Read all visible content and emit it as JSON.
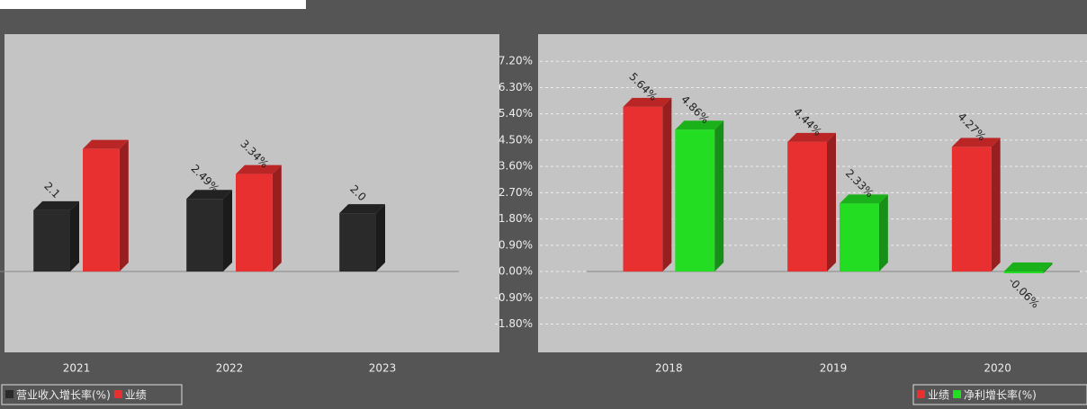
{
  "chart_data": [
    {
      "type": "bar",
      "categories": [
        "2021",
        "2022",
        "2023"
      ],
      "series": [
        {
          "name": "营业收入增长率(%)",
          "color": "#2a2a2a",
          "values": [
            2.1,
            2.49,
            2.0
          ],
          "value_labels": [
            "2.1",
            "2.49%",
            "2.0"
          ]
        },
        {
          "name": "业绩",
          "color": "#e83030",
          "values": [
            4.2,
            3.34,
            null
          ],
          "value_labels": [
            null,
            "3.34%",
            null
          ]
        }
      ],
      "ylim": [
        -2.4,
        8.1
      ],
      "grid": true
    },
    {
      "type": "bar",
      "categories": [
        "2018",
        "2019",
        "2020"
      ],
      "series": [
        {
          "name": "业绩",
          "color": "#e83030",
          "values": [
            5.64,
            4.44,
            4.27
          ],
          "value_labels": [
            "5.64%",
            "4.44%",
            "4.27%"
          ]
        },
        {
          "name": "净利增长率(%)",
          "color": "#22dd22",
          "values": [
            4.86,
            2.33,
            -0.06
          ],
          "value_labels": [
            "4.86%",
            "2.33%",
            "-0.06%"
          ]
        }
      ],
      "ylim": [
        -2.4,
        8.1
      ],
      "yticks": [
        {
          "value": 7.2,
          "label": "7.20%"
        },
        {
          "value": 6.3,
          "label": "6.30%"
        },
        {
          "value": 5.4,
          "label": "5.40%"
        },
        {
          "value": 4.5,
          "label": "4.50%"
        },
        {
          "value": 3.6,
          "label": "3.60%"
        },
        {
          "value": 2.7,
          "label": "2.70%"
        },
        {
          "value": 1.8,
          "label": "1.80%"
        },
        {
          "value": 0.9,
          "label": "0.90%"
        },
        {
          "value": 0,
          "label": "0.00%"
        },
        {
          "value": -0.9,
          "label": "-0.90%"
        },
        {
          "value": -1.8,
          "label": "-1.80%"
        }
      ],
      "grid": true
    }
  ]
}
